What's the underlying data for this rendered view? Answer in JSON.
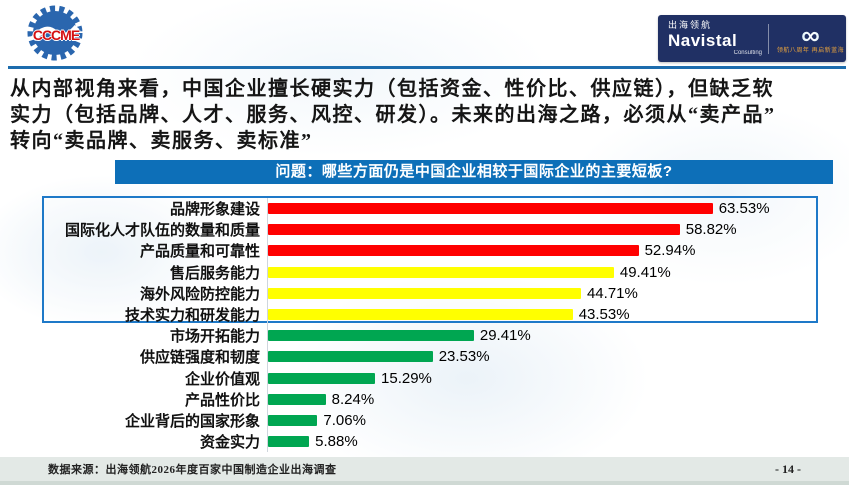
{
  "header": {
    "cccme_logo_text": "CCCME",
    "navistal": {
      "chinese": "出海领航",
      "brand": "Navistal",
      "sub": "Consulting",
      "infinity_icon": "∞",
      "tagline": "领航八周年 再启新蓝海"
    }
  },
  "intro": {
    "line1": "从内部视角来看，中国企业擅长硬实力（包括资金、性价比、供应链），但缺乏软",
    "line2": "实力（包括品牌、人才、服务、风控、研发）。未来的出海之路，必须从“卖产品”",
    "line3": "转向“卖品牌、卖服务、卖标准”"
  },
  "question_banner": "问题：哪些方面仍是中国企业相较于国际企业的主要短板?",
  "chart_data": {
    "type": "bar",
    "orientation": "horizontal",
    "title": "问题：哪些方面仍是中国企业相较于国际企业的主要短板?",
    "categories": [
      "品牌形象建设",
      "国际化人才队伍的数量和质量",
      "产品质量和可靠性",
      "售后服务能力",
      "海外风险防控能力",
      "技术实力和研发能力",
      "市场开拓能力",
      "供应链强度和韧度",
      "企业价值观",
      "产品性价比",
      "企业背后的国家形象",
      "资金实力"
    ],
    "values": [
      63.53,
      58.82,
      52.94,
      49.41,
      44.71,
      43.53,
      29.41,
      23.53,
      15.29,
      8.24,
      7.06,
      5.88
    ],
    "value_labels": [
      "63.53%",
      "58.82%",
      "52.94%",
      "49.41%",
      "44.71%",
      "43.53%",
      "29.41%",
      "23.53%",
      "15.29%",
      "8.24%",
      "7.06%",
      "5.88%"
    ],
    "colors": [
      "#ff0000",
      "#ff0000",
      "#ff0000",
      "#ffff00",
      "#ffff00",
      "#ffff00",
      "#00a651",
      "#00a651",
      "#00a651",
      "#00a651",
      "#00a651",
      "#00a651"
    ],
    "xlim": [
      0,
      70
    ],
    "grid": false,
    "legend": false,
    "highlighted_rows": 6
  },
  "footer": {
    "source": "数据来源：出海领航2026年度百家中国制造企业出海调查",
    "page": "- 14 -"
  },
  "colors": {
    "red": "#ff0000",
    "yellow": "#ffff00",
    "green": "#00a651",
    "banner_blue": "#0d6fb8",
    "header_line_blue": "#1c6cad",
    "highlight_border_blue": "#1e79c8",
    "logo_navy": "#203064",
    "tagline_orange": "#e8a33d",
    "cccme_red": "#d40f12",
    "cccme_blue": "#2a66ae"
  }
}
